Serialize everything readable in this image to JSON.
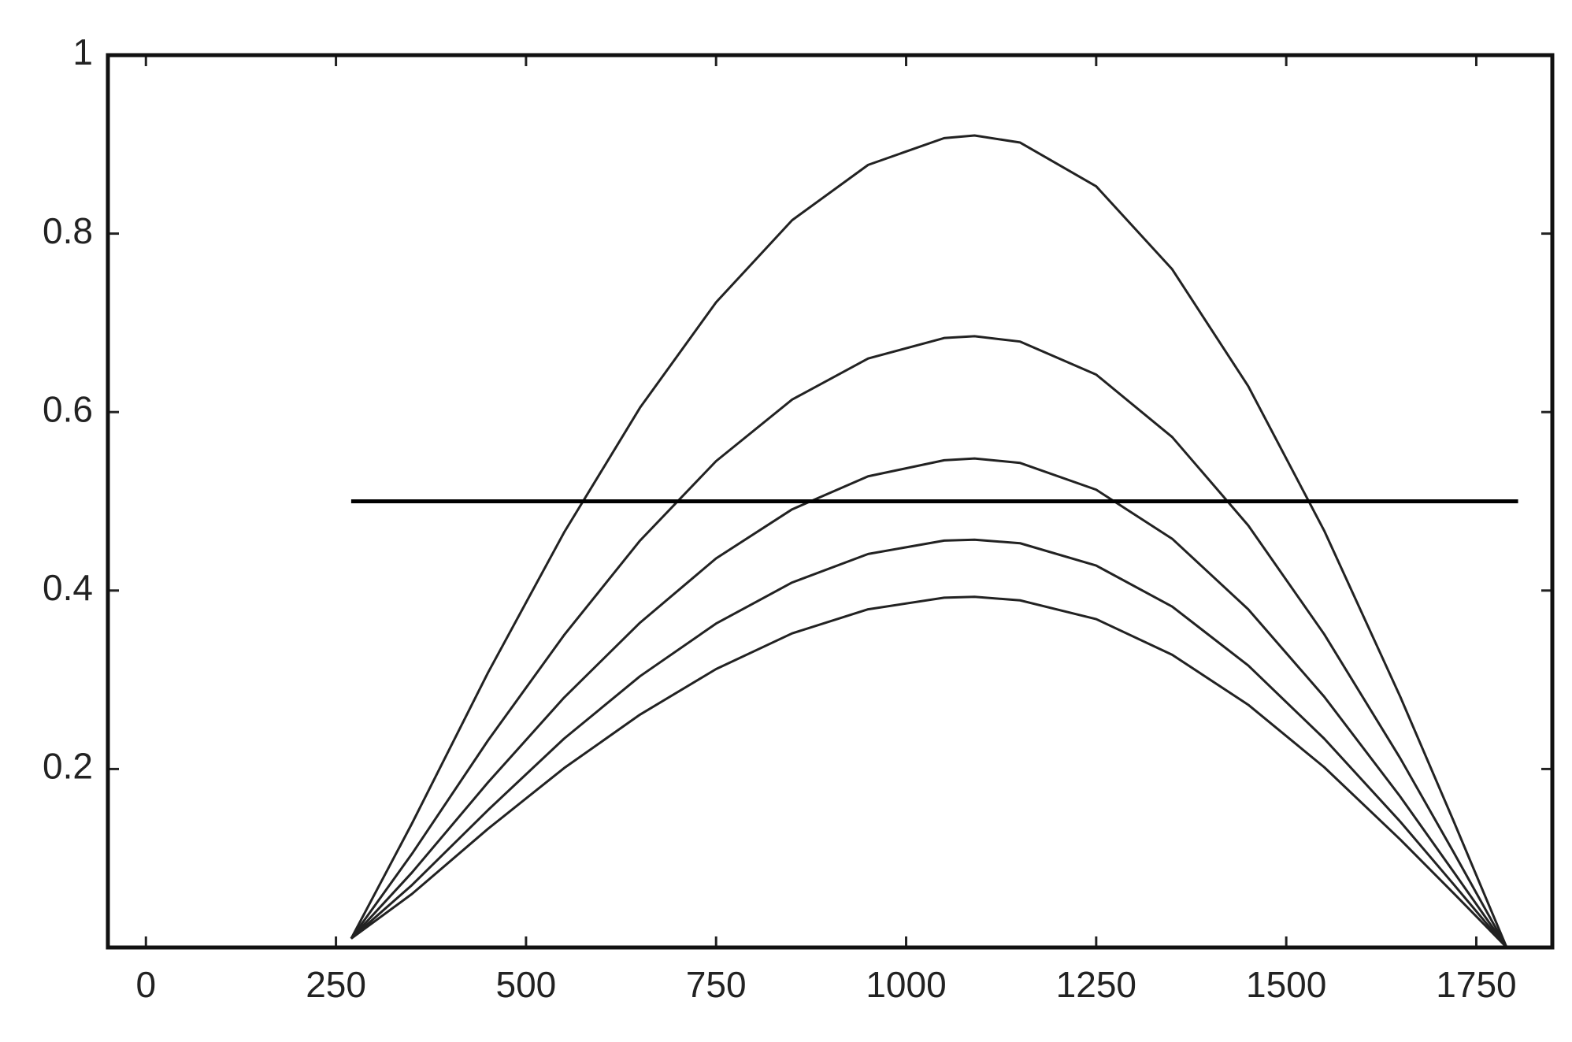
{
  "chart_data": {
    "type": "line",
    "x": [
      270,
      350,
      450,
      550,
      650,
      750,
      850,
      950,
      1050,
      1090,
      1150,
      1250,
      1350,
      1450,
      1550,
      1650,
      1720,
      1790
    ],
    "series": [
      {
        "color": "#222222",
        "values": [
          0.01,
          0.139,
          0.308,
          0.465,
          0.605,
          0.723,
          0.815,
          0.877,
          0.907,
          0.91,
          0.902,
          0.853,
          0.76,
          0.629,
          0.467,
          0.281,
          0.142,
          0
        ]
      },
      {
        "color": "#222222",
        "values": [
          0.01,
          0.105,
          0.232,
          0.35,
          0.456,
          0.545,
          0.614,
          0.66,
          0.683,
          0.685,
          0.679,
          0.642,
          0.572,
          0.473,
          0.351,
          0.212,
          0.107,
          0
        ]
      },
      {
        "color": "#222222",
        "values": [
          0.01,
          0.084,
          0.185,
          0.28,
          0.364,
          0.436,
          0.491,
          0.528,
          0.546,
          0.548,
          0.543,
          0.513,
          0.458,
          0.379,
          0.281,
          0.169,
          0.085,
          0
        ]
      },
      {
        "color": "#222222",
        "values": [
          0.01,
          0.07,
          0.154,
          0.234,
          0.304,
          0.363,
          0.409,
          0.441,
          0.456,
          0.457,
          0.453,
          0.428,
          0.382,
          0.316,
          0.234,
          0.141,
          0.071,
          0
        ]
      },
      {
        "color": "#222222",
        "values": [
          0.01,
          0.06,
          0.133,
          0.201,
          0.261,
          0.312,
          0.352,
          0.379,
          0.392,
          0.393,
          0.389,
          0.368,
          0.328,
          0.272,
          0.202,
          0.121,
          0.061,
          0
        ]
      },
      {
        "color": "#000000",
        "x": [
          270,
          1805
        ],
        "values": [
          0.5,
          0.5
        ]
      }
    ],
    "xlim": [
      -50,
      1850
    ],
    "xticks": [
      0,
      250,
      500,
      750,
      1000,
      1250,
      1500,
      1750
    ],
    "ylim": [
      0,
      1
    ],
    "yticks": [
      0.2,
      0.4,
      0.6,
      0.8,
      1
    ],
    "grid": false
  }
}
